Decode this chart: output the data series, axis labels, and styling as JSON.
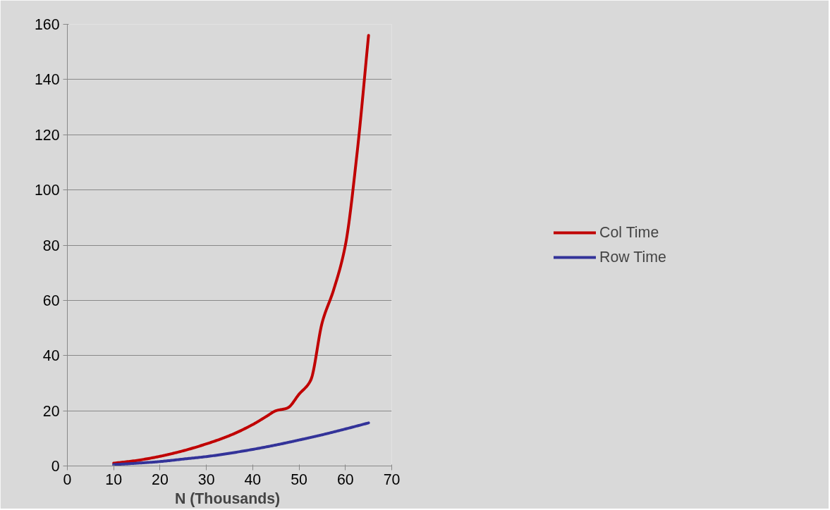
{
  "chart_data": {
    "type": "line",
    "xlabel": "N  (Thousands)",
    "series": [
      {
        "name": "Col Time",
        "color": "#c00000",
        "x": [
          10,
          15,
          20,
          25,
          30,
          35,
          40,
          43,
          45,
          47.5,
          50,
          52.5,
          55,
          57.5,
          60,
          62.5,
          65
        ],
        "values": [
          1,
          2,
          3.5,
          5.5,
          8,
          11,
          15,
          18,
          20,
          21,
          26,
          31,
          52,
          64,
          80,
          113,
          156
        ]
      },
      {
        "name": "Row Time",
        "color": "#333399",
        "x": [
          10,
          15,
          20,
          25,
          30,
          35,
          40,
          45,
          50,
          55,
          60,
          65
        ],
        "values": [
          0.5,
          1,
          1.6,
          2.5,
          3.4,
          4.6,
          6,
          7.6,
          9.4,
          11.3,
          13.4,
          15.6
        ]
      }
    ],
    "xlim": [
      0,
      70
    ],
    "xticks": [
      0,
      10,
      20,
      30,
      40,
      50,
      60,
      70
    ],
    "ylim": [
      0,
      160
    ],
    "yticks": [
      0,
      20,
      40,
      60,
      80,
      100,
      120,
      140,
      160
    ],
    "grid": "y",
    "legend": "right",
    "marker": "none",
    "line_style": "solid"
  }
}
